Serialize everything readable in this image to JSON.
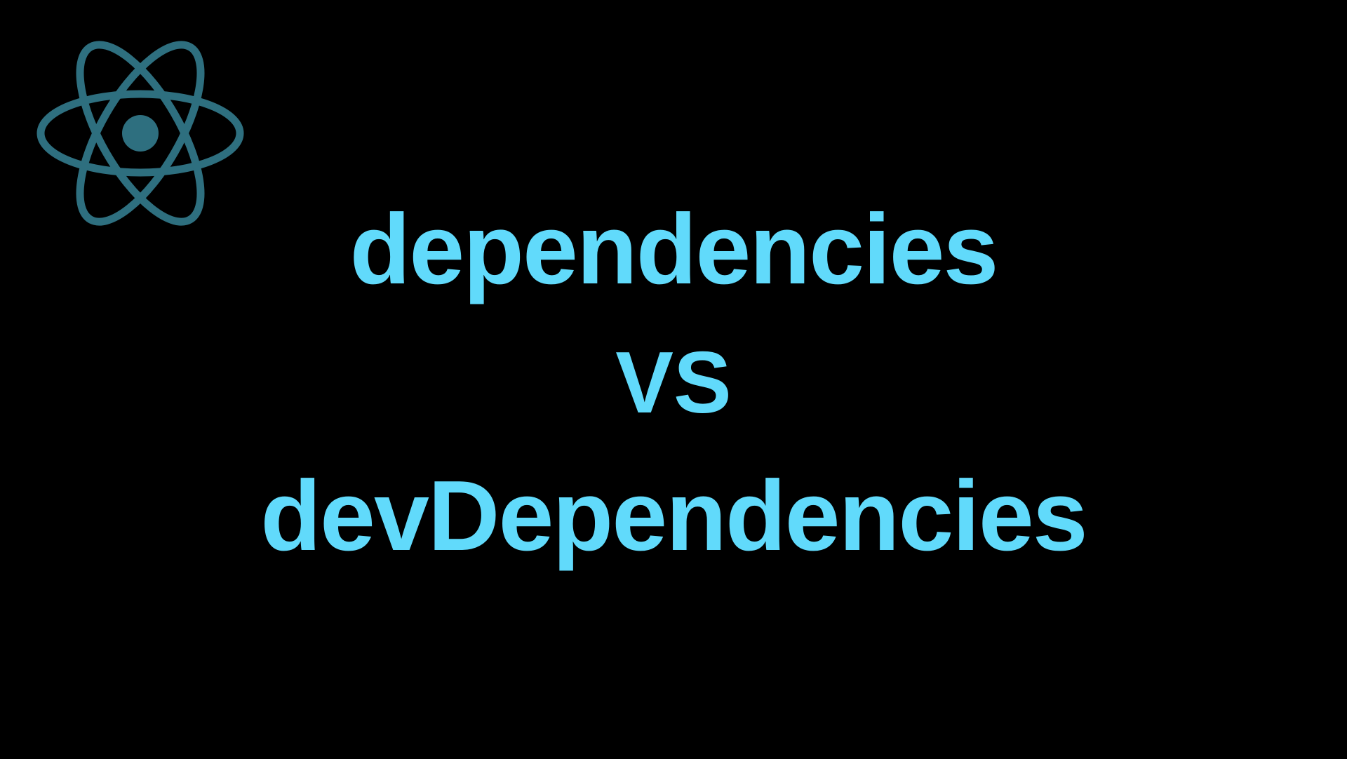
{
  "logo": {
    "icon": "react-atom-icon",
    "color": "#2e6f7f"
  },
  "headline": {
    "line1": "dependencies",
    "versus": "VS",
    "line2": "devDependencies",
    "color": "#61dafb"
  },
  "background": "#000000"
}
